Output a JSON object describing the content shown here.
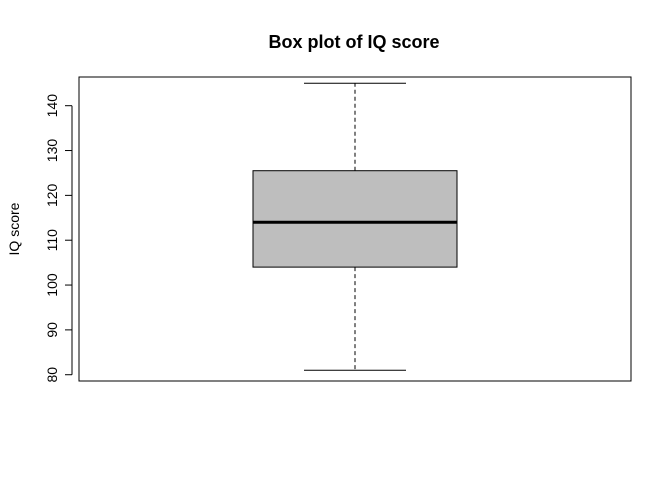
{
  "chart_data": {
    "type": "boxplot",
    "title": "Box plot of IQ score",
    "xlabel": "",
    "ylabel": "IQ score",
    "ylim": [
      78.6,
      146.4
    ],
    "yticks": [
      80,
      90,
      100,
      110,
      120,
      130,
      140
    ],
    "grid": false,
    "box": {
      "min": 81,
      "q1": 104,
      "median": 114,
      "q3": 125.5,
      "max": 145
    },
    "colors": {
      "box_fill": "#bebebe",
      "stroke": "#000000"
    }
  }
}
